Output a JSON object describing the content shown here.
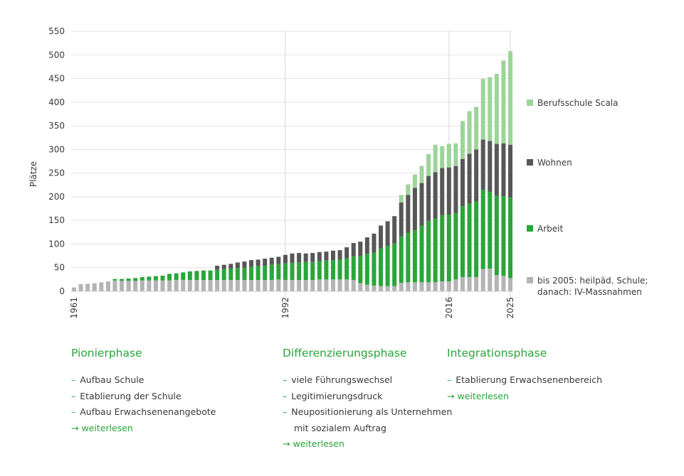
{
  "chart_data": {
    "type": "bar",
    "stacked": true,
    "ylabel": "Plätze",
    "ylim": [
      0,
      550
    ],
    "yticks": [
      0,
      50,
      100,
      150,
      200,
      250,
      300,
      350,
      400,
      450,
      500,
      550
    ],
    "xlim": [
      1961,
      2025
    ],
    "xticks": [
      "1961",
      "1992",
      "2016",
      "2025"
    ],
    "vertical_gridlines_at": [
      1992,
      2016,
      2025
    ],
    "x": [
      1961,
      1962,
      1963,
      1964,
      1965,
      1966,
      1967,
      1968,
      1969,
      1970,
      1971,
      1972,
      1973,
      1974,
      1975,
      1976,
      1977,
      1978,
      1979,
      1980,
      1981,
      1982,
      1983,
      1984,
      1985,
      1986,
      1987,
      1988,
      1989,
      1990,
      1991,
      1992,
      1993,
      1994,
      1995,
      1996,
      1997,
      1998,
      1999,
      2000,
      2001,
      2002,
      2003,
      2004,
      2005,
      2006,
      2007,
      2008,
      2009,
      2010,
      2011,
      2012,
      2013,
      2014,
      2015,
      2016,
      2017,
      2018,
      2019,
      2020,
      2021,
      2022,
      2023,
      2024,
      2025
    ],
    "series": [
      {
        "name": "bis 2005: heilpäd. Schule; danach: IV-Massnahmen",
        "color": "#b4b4b4",
        "values": [
          8,
          15,
          16,
          17,
          19,
          21,
          23,
          22,
          22,
          22,
          23,
          23,
          23,
          23,
          23,
          24,
          24,
          24,
          24,
          24,
          24,
          24,
          24,
          24,
          24,
          24,
          24,
          24,
          24,
          24,
          25,
          24,
          24,
          24,
          24,
          24,
          25,
          25,
          25,
          25,
          25,
          24,
          17,
          14,
          12,
          11,
          11,
          11,
          18,
          19,
          19,
          19,
          19,
          19,
          21,
          21,
          25,
          30,
          30,
          30,
          47,
          48,
          34,
          33,
          28
        ]
      },
      {
        "name": "Arbeit",
        "color": "#2aa53a",
        "values": [
          0,
          0,
          0,
          0,
          0,
          0,
          3,
          4,
          5,
          6,
          7,
          8,
          9,
          10,
          14,
          14,
          16,
          18,
          19,
          20,
          20,
          22,
          23,
          24,
          25,
          26,
          28,
          29,
          30,
          32,
          33,
          35,
          36,
          37,
          38,
          38,
          39,
          40,
          41,
          42,
          45,
          50,
          58,
          65,
          70,
          80,
          85,
          90,
          98,
          105,
          110,
          120,
          130,
          135,
          140,
          141,
          140,
          150,
          155,
          160,
          168,
          162,
          168,
          168,
          170
        ]
      },
      {
        "name": "Wohnen",
        "color": "#575757",
        "values": [
          0,
          0,
          0,
          0,
          0,
          0,
          0,
          0,
          0,
          0,
          0,
          0,
          0,
          0,
          0,
          0,
          0,
          0,
          0,
          0,
          0,
          8,
          9,
          10,
          12,
          13,
          14,
          14,
          15,
          15,
          15,
          18,
          20,
          20,
          18,
          19,
          19,
          19,
          20,
          20,
          23,
          28,
          30,
          35,
          40,
          48,
          52,
          58,
          72,
          80,
          90,
          90,
          95,
          98,
          100,
          100,
          100,
          100,
          106,
          110,
          106,
          108,
          110,
          112,
          112
        ]
      },
      {
        "name": "Berufsschule Scala",
        "color": "#9dd49a",
        "values": [
          0,
          0,
          0,
          0,
          0,
          0,
          0,
          0,
          0,
          0,
          0,
          0,
          0,
          0,
          0,
          0,
          0,
          0,
          0,
          0,
          0,
          0,
          0,
          0,
          0,
          0,
          0,
          0,
          0,
          0,
          0,
          0,
          0,
          0,
          0,
          0,
          0,
          0,
          0,
          0,
          0,
          0,
          0,
          0,
          0,
          0,
          0,
          0,
          16,
          22,
          28,
          36,
          46,
          58,
          46,
          50,
          48,
          80,
          90,
          90,
          128,
          135,
          148,
          175,
          198
        ]
      }
    ],
    "legend": [
      "Berufsschule Scala",
      "Wohnen",
      "Arbeit",
      "bis 2005: heilpäd. Schule; danach: IV-Massnahmen"
    ],
    "legend_position": "right"
  },
  "legend": [
    {
      "name": "Berufsschule Scala",
      "color": "#9dd49a",
      "lines": [
        "Berufsschule Scala"
      ]
    },
    {
      "name": "Wohnen",
      "color": "#575757",
      "lines": [
        "Wohnen"
      ]
    },
    {
      "name": "Arbeit",
      "color": "#2aa53a",
      "lines": [
        "Arbeit"
      ]
    },
    {
      "name": "bis 2005: heilpäd. Schule; danach: IV-Massnahmen",
      "color": "#b4b4b4",
      "lines": [
        "bis 2005: heilpäd. Schule;",
        "danach: IV-Massnahmen"
      ]
    }
  ],
  "phases": [
    {
      "title": "Pionierphase",
      "items": [
        "Aufbau Schule",
        "Etablierung der Schule",
        "Aufbau Erwachsenenangebote"
      ],
      "link": "weiterlesen"
    },
    {
      "title": "Differenzierungsphase",
      "items": [
        "viele Führungswechsel",
        "Legitimierungsdruck",
        "Neupositionierung als Unternehmen",
        "mit sozialem Auftrag"
      ],
      "link": "weiterlesen"
    },
    {
      "title": "Integrationsphase",
      "items": [
        "Etablierung Erwachsenenbereich"
      ],
      "link": "weiterlesen"
    }
  ]
}
